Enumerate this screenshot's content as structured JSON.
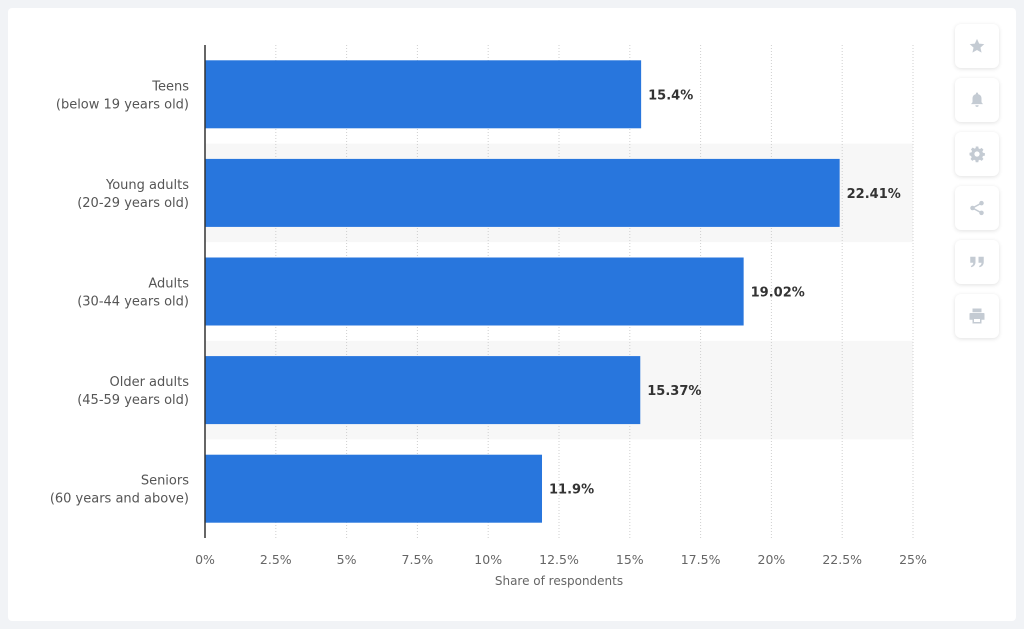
{
  "chart_data": {
    "type": "bar",
    "orientation": "horizontal",
    "categories": [
      [
        "Teens",
        "(below 19 years old)"
      ],
      [
        "Young adults",
        "(20-29 years old)"
      ],
      [
        "Adults",
        "(30-44 years old)"
      ],
      [
        "Older adults",
        "(45-59 years old)"
      ],
      [
        "Seniors",
        "(60 years and above)"
      ]
    ],
    "values": [
      15.4,
      22.41,
      19.02,
      15.37,
      11.9
    ],
    "value_labels": [
      "15.4%",
      "22.41%",
      "19.02%",
      "15.37%",
      "11.9%"
    ],
    "xlabel": "Share of respondents",
    "xlim": [
      0,
      25
    ],
    "xticks": [
      0,
      2.5,
      5,
      7.5,
      10,
      12.5,
      15,
      17.5,
      20,
      22.5,
      25
    ],
    "xtick_labels": [
      "0%",
      "2.5%",
      "5%",
      "7.5%",
      "10%",
      "12.5%",
      "15%",
      "17.5%",
      "20%",
      "22.5%",
      "25%"
    ],
    "grid": true,
    "bar_color": "#2876dd"
  },
  "toolbar": {
    "buttons": [
      {
        "name": "favorite-button",
        "icon": "star-icon"
      },
      {
        "name": "notification-button",
        "icon": "bell-icon"
      },
      {
        "name": "settings-button",
        "icon": "gear-icon"
      },
      {
        "name": "share-button",
        "icon": "share-icon"
      },
      {
        "name": "cite-button",
        "icon": "quote-icon"
      },
      {
        "name": "print-button",
        "icon": "print-icon"
      }
    ],
    "icon_color": "#c4cbd3"
  }
}
